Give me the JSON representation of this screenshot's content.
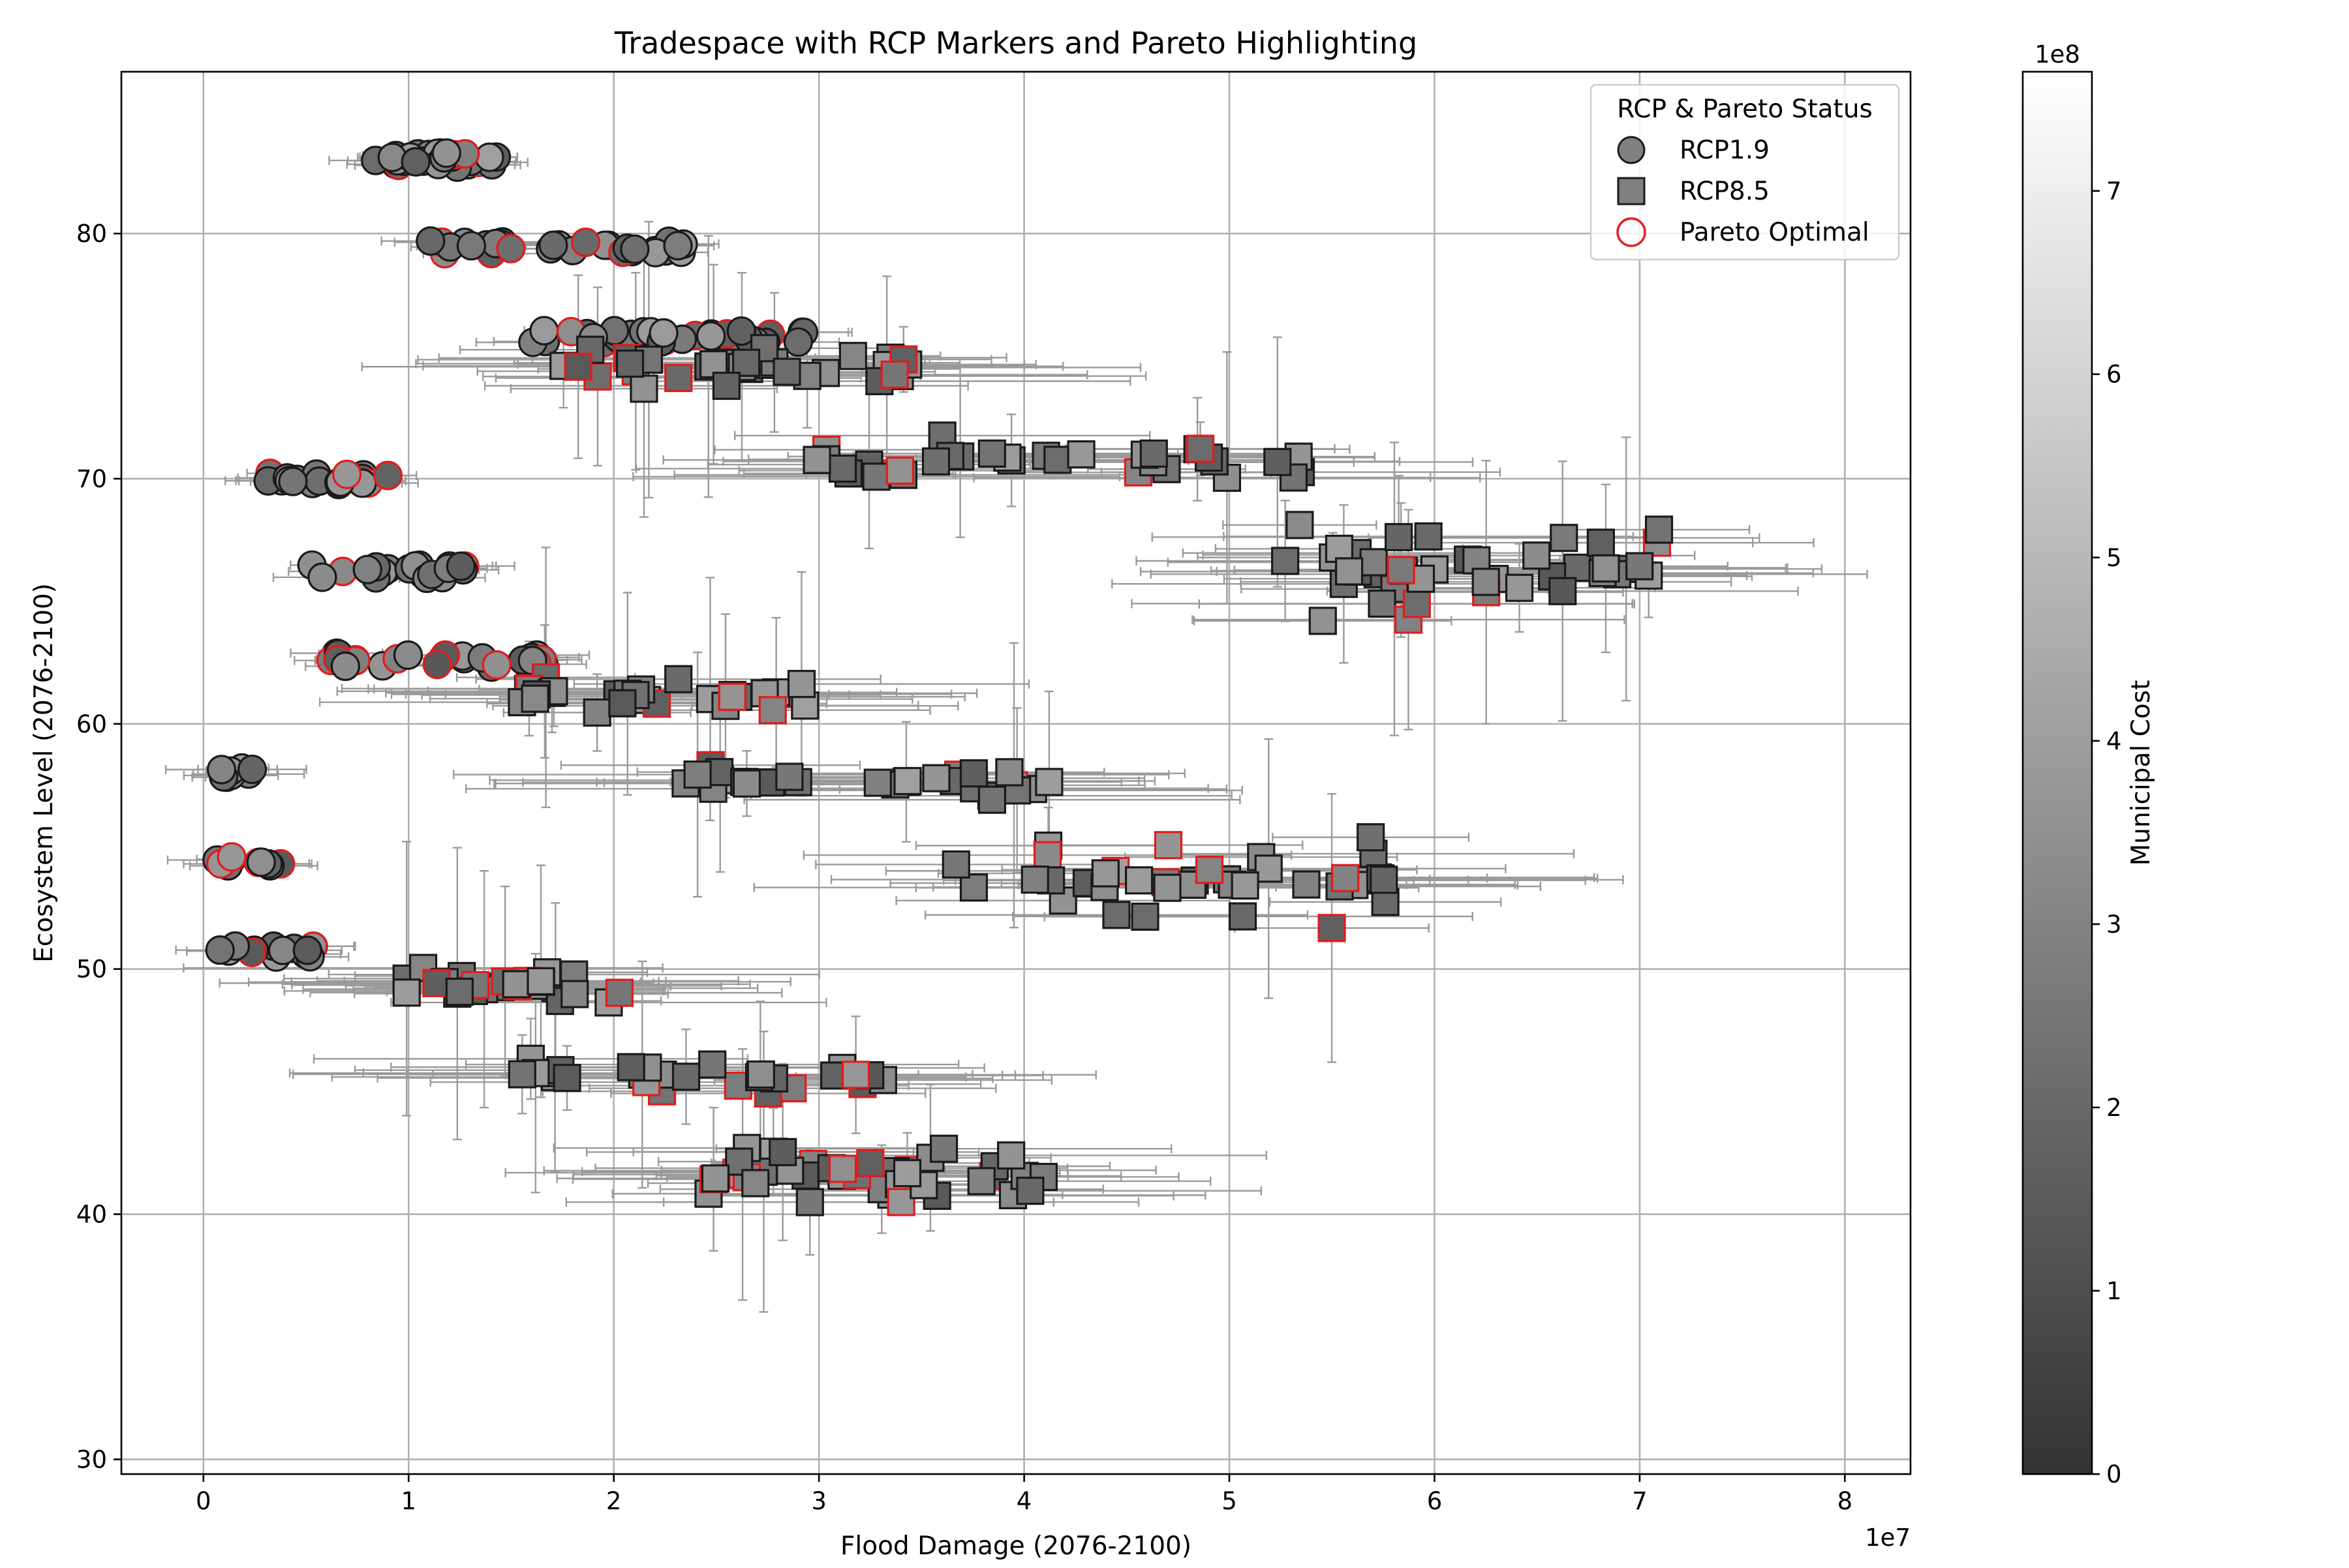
{
  "chart_data": {
    "type": "scatter",
    "title": "Tradespace with RCP Markers and Pareto Highlighting",
    "xlabel": "Flood Damage (2076-2100)",
    "ylabel": "Ecosystem Level (2076-2100)",
    "x_multiplier_label": "1e7",
    "xlim": [
      -0.4,
      8.32
    ],
    "ylim": [
      29.4,
      86.6
    ],
    "x_ticks": [
      0,
      1,
      2,
      3,
      4,
      5,
      6,
      7,
      8
    ],
    "y_ticks": [
      30,
      40,
      50,
      60,
      70,
      80
    ],
    "grid": true,
    "legend": {
      "title": "RCP & Pareto Status",
      "position": "top-right",
      "entries": [
        {
          "label": "RCP1.9",
          "marker": "circle"
        },
        {
          "label": "RCP8.5",
          "marker": "square"
        },
        {
          "label": "Pareto Optimal",
          "marker": "hollow-circle"
        }
      ]
    },
    "colorbar": {
      "label": "Municipal Cost",
      "multiplier_label": "1e8",
      "range": [
        0,
        7.65
      ],
      "ticks": [
        0,
        1,
        2,
        3,
        4,
        5,
        6,
        7
      ],
      "colormap": "gray"
    },
    "colors": {
      "pareto_edge": "#e41a1c",
      "marker_edge": "#1a1a1a",
      "errorbar": "#9a9a9a",
      "grid": "#b0b0b0"
    },
    "series": [
      {
        "name": "RCP1.9",
        "marker": "circle",
        "clusters": [
          {
            "x": [
              0.75,
              1.55
            ],
            "y": 83.0,
            "dy": 0.6,
            "n": 30
          },
          {
            "x": [
              1.05,
              2.35
            ],
            "y": 79.4,
            "dy": 0.6,
            "n": 32
          },
          {
            "x": [
              1.6,
              2.95
            ],
            "y": 75.8,
            "dy": 0.6,
            "n": 32
          },
          {
            "x": [
              0.3,
              0.9
            ],
            "y": 70.0,
            "dy": 0.5,
            "n": 20
          },
          {
            "x": [
              0.52,
              1.28
            ],
            "y": 66.2,
            "dy": 0.6,
            "n": 22
          },
          {
            "x": [
              0.62,
              1.72
            ],
            "y": 62.6,
            "dy": 0.6,
            "n": 26
          },
          {
            "x": [
              0.06,
              0.25
            ],
            "y": 58.0,
            "dy": 0.5,
            "n": 8
          },
          {
            "x": [
              0.06,
              0.4
            ],
            "y": 54.4,
            "dy": 0.5,
            "n": 10
          },
          {
            "x": [
              0.05,
              0.55
            ],
            "y": 50.7,
            "dy": 0.5,
            "n": 14
          }
        ]
      },
      {
        "name": "RCP8.5",
        "marker": "square",
        "clusters": [
          {
            "x": [
              1.75,
              3.5
            ],
            "y": 74.6,
            "dy": 1.0,
            "n": 34
          },
          {
            "x": [
              2.95,
              5.35
            ],
            "y": 70.8,
            "dy": 1.0,
            "n": 34
          },
          {
            "x": [
              5.25,
              7.15
            ],
            "y": 66.4,
            "dy": 2.4,
            "n": 42
          },
          {
            "x": [
              1.55,
              2.95
            ],
            "y": 61.2,
            "dy": 1.0,
            "n": 30
          },
          {
            "x": [
              2.35,
              4.15
            ],
            "y": 57.6,
            "dy": 0.9,
            "n": 28
          },
          {
            "x": [
              3.6,
              5.8
            ],
            "y": 53.6,
            "dy": 2.2,
            "n": 40
          },
          {
            "x": [
              0.95,
              2.05
            ],
            "y": 49.3,
            "dy": 1.0,
            "n": 26
          },
          {
            "x": [
              1.55,
              3.35
            ],
            "y": 45.7,
            "dy": 0.9,
            "n": 28
          },
          {
            "x": [
              2.3,
              4.1
            ],
            "y": 41.6,
            "dy": 1.8,
            "n": 40
          }
        ]
      }
    ]
  }
}
